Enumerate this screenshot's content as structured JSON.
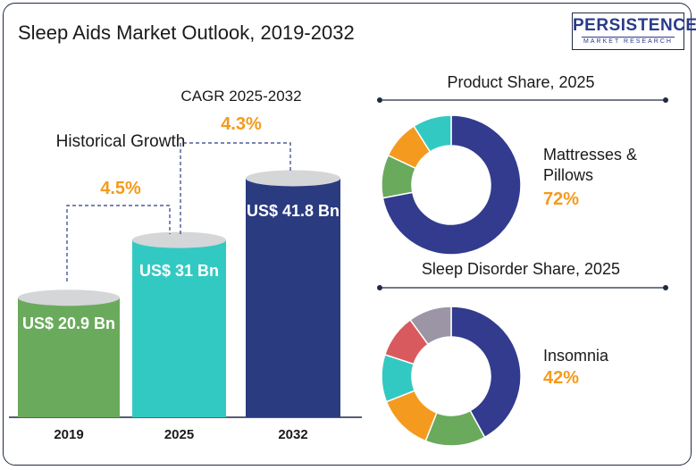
{
  "title": "Sleep Aids Market Outlook, 2019-2032",
  "logo": {
    "main": "PERSISTENCE",
    "sub": "MARKET RESEARCH"
  },
  "historical": {
    "label": "Historical Growth",
    "value": "4.5%"
  },
  "cagr": {
    "label": "CAGR 2025-2032",
    "value": "4.3%"
  },
  "chart_data": [
    {
      "type": "bar",
      "categories": [
        "2019",
        "2025",
        "2032"
      ],
      "values": [
        20.9,
        31,
        41.8
      ],
      "data_labels": [
        "US$ 20.9 Bn",
        "US$ 31 Bn",
        "US$ 41.8 Bn"
      ],
      "colors": [
        "#6aaa5c",
        "#33c9c3",
        "#2b3b80"
      ],
      "title": "",
      "xlabel": "",
      "ylabel": ""
    },
    {
      "type": "pie",
      "title": "Product Share, 2025",
      "highlight_label": "Mattresses & Pillows",
      "highlight_value": "72%",
      "slices": [
        {
          "value": 72,
          "color": "#323b8d"
        },
        {
          "value": 10,
          "color": "#6aaa5c"
        },
        {
          "value": 9,
          "color": "#f49a1f"
        },
        {
          "value": 9,
          "color": "#33c9c3"
        }
      ]
    },
    {
      "type": "pie",
      "title": "Sleep Disorder Share, 2025",
      "highlight_label": "Insomnia",
      "highlight_value": "42%",
      "slices": [
        {
          "value": 42,
          "color": "#323b8d"
        },
        {
          "value": 14,
          "color": "#6aaa5c"
        },
        {
          "value": 13,
          "color": "#f49a1f"
        },
        {
          "value": 11,
          "color": "#33c9c3"
        },
        {
          "value": 10,
          "color": "#d95a5e"
        },
        {
          "value": 10,
          "color": "#9b95a5"
        }
      ]
    }
  ]
}
